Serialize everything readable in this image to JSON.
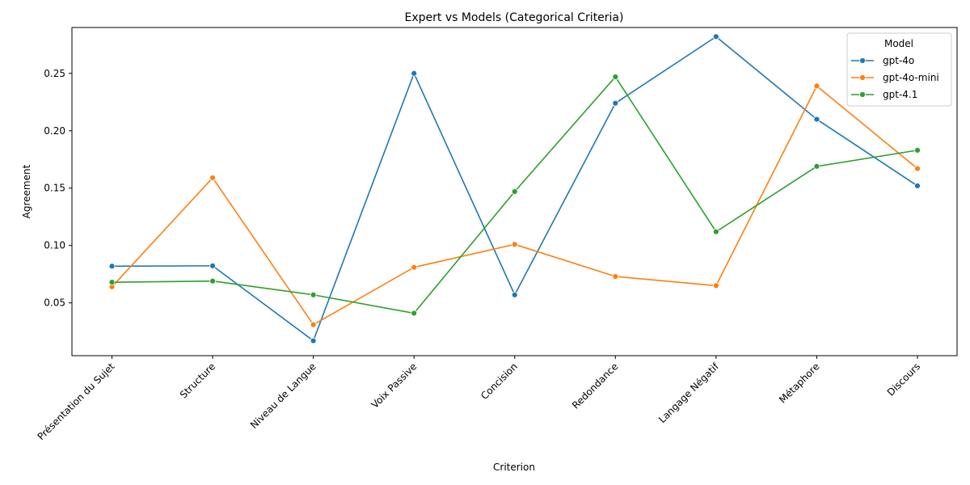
{
  "chart_data": {
    "type": "line",
    "title": "Expert vs Models (Categorical Criteria)",
    "xlabel": "Criterion",
    "ylabel": "Agreement",
    "categories": [
      "Présentation du Sujet",
      "Structure",
      "Niveau de Langue",
      "Voix Passive",
      "Concision",
      "Redondance",
      "Langage Négatif",
      "Métaphore",
      "Discours"
    ],
    "ylim": [
      0.004,
      0.29
    ],
    "yticks": [
      0.05,
      0.1,
      0.15,
      0.2,
      0.25
    ],
    "ytick_labels": [
      "0.05",
      "0.10",
      "0.15",
      "0.20",
      "0.25"
    ],
    "grid": false,
    "legend": {
      "title": "Model",
      "placement": "top-right"
    },
    "series": [
      {
        "name": "gpt-4o",
        "color": "#1f77b4",
        "values": [
          0.082,
          0.0823,
          0.017,
          0.25,
          0.057,
          0.224,
          0.282,
          0.21,
          0.152
        ]
      },
      {
        "name": "gpt-4o-mini",
        "color": "#ff7f0e",
        "values": [
          0.064,
          0.159,
          0.031,
          0.081,
          0.101,
          0.073,
          0.065,
          0.239,
          0.167
        ]
      },
      {
        "name": "gpt-4.1",
        "color": "#2ca02c",
        "values": [
          0.068,
          0.069,
          0.057,
          0.041,
          0.147,
          0.247,
          0.112,
          0.169,
          0.183
        ]
      }
    ]
  }
}
